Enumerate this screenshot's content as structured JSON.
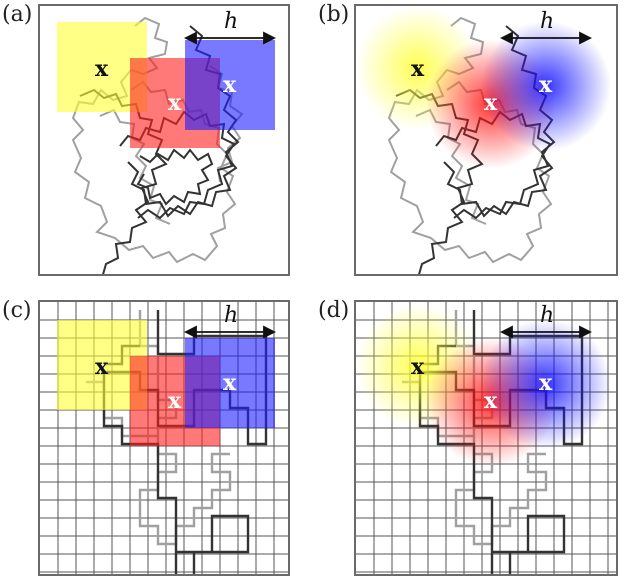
{
  "panels": [
    {
      "id": "a",
      "label": "(a)"
    },
    {
      "id": "b",
      "label": "(b)"
    },
    {
      "id": "c",
      "label": "(c)"
    },
    {
      "id": "d",
      "label": "(d)"
    }
  ],
  "marker_text": "x",
  "distance_label": "h",
  "colors": {
    "yellow": "#ffff33",
    "red": "#ff2020",
    "blue": "#2020ff",
    "walk_dark": "#333333",
    "walk_light": "#a0a0a0",
    "grid": "#555555",
    "frame": "#6a6a6a"
  }
}
